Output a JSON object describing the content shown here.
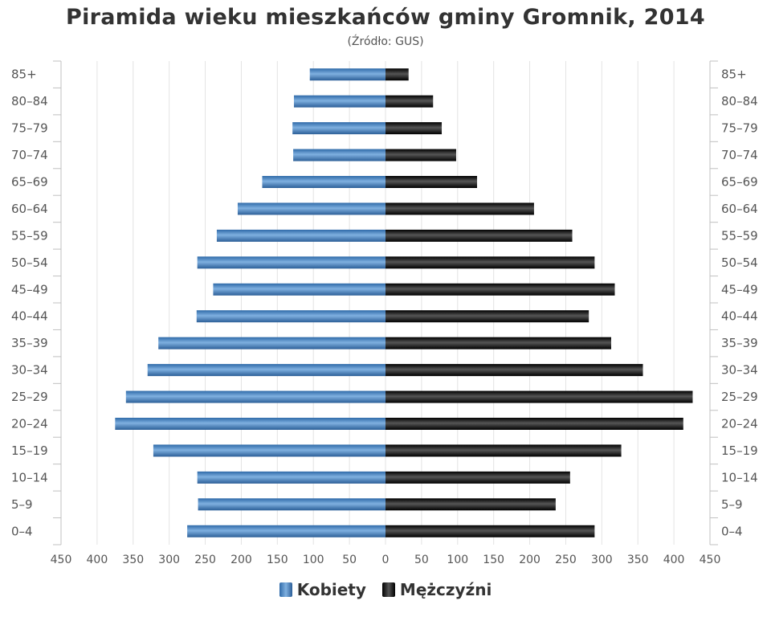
{
  "chart_data": {
    "type": "bar",
    "orientation": "horizontal-pyramid",
    "title": "Piramida wieku mieszkańców gminy Gromnik, 2014",
    "subtitle": "(Źródło: GUS)",
    "categories": [
      "0–4",
      "5–9",
      "10–14",
      "15–19",
      "20–24",
      "25–29",
      "30–34",
      "35–39",
      "40–44",
      "45–49",
      "50–54",
      "55–59",
      "60–64",
      "65–69",
      "70–74",
      "75–79",
      "80–84",
      "85+"
    ],
    "series": [
      {
        "name": "Kobiety",
        "side": "left",
        "color": "#4a86c5",
        "values": [
          275,
          260,
          261,
          322,
          375,
          360,
          330,
          315,
          262,
          239,
          261,
          234,
          205,
          171,
          128,
          129,
          127,
          105
        ]
      },
      {
        "name": "Mężczyźni",
        "side": "right",
        "color": "#1a1a1a",
        "values": [
          290,
          236,
          256,
          327,
          413,
          426,
          357,
          313,
          282,
          318,
          290,
          259,
          206,
          127,
          98,
          78,
          66,
          32
        ]
      }
    ],
    "xlim": [
      -450,
      450
    ],
    "x_ticks": [
      450,
      400,
      350,
      300,
      250,
      200,
      150,
      100,
      50,
      0,
      50,
      100,
      150,
      200,
      250,
      300,
      350,
      400,
      450
    ],
    "grid": true,
    "legend_position": "bottom-center"
  }
}
